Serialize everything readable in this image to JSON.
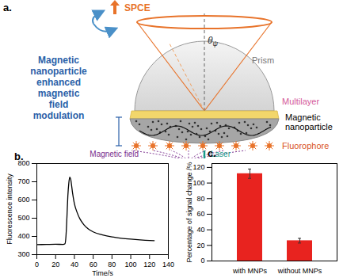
{
  "diagram": {
    "panel_label": "a.",
    "top_label": "SPCE",
    "angle_label": "θ",
    "angle_subscript": "ψ",
    "prism": "Prism",
    "multilayer": "Multilayer",
    "nanoparticle": [
      "Magnetic",
      "nanoparticle"
    ],
    "modulation": [
      "Magnetic",
      "nanoparticle",
      "enhanced",
      "magnetic",
      "field",
      "modulation"
    ],
    "fluorophore": "Fluorophore",
    "field": "Magnetic field",
    "laser": "Laser"
  },
  "chart_data": [
    {
      "type": "line",
      "title": "b.",
      "x_label": "Time/s",
      "y_label": "Fluorescence intensity",
      "color": "#000000",
      "x": [
        0,
        10,
        20,
        28,
        30,
        31,
        32,
        33,
        34,
        35,
        36,
        38,
        40,
        43,
        46,
        50,
        55,
        60,
        70,
        80,
        90,
        100,
        110,
        120,
        125
      ],
      "values": [
        355,
        356,
        357,
        356,
        360,
        400,
        500,
        620,
        690,
        725,
        715,
        640,
        580,
        530,
        495,
        465,
        440,
        425,
        408,
        397,
        390,
        385,
        381,
        378,
        377
      ],
      "xlim": [
        0,
        140
      ],
      "xticks": [
        0,
        20,
        40,
        60,
        80,
        100,
        120,
        140
      ],
      "ylim": [
        300,
        800
      ],
      "yticks": [
        300,
        400,
        500,
        600,
        700,
        800
      ]
    },
    {
      "type": "bar",
      "title": "c.",
      "y_label": "Percentage of signal change /%",
      "color": "#e8231f",
      "categories": [
        "with MNPs",
        "without MNPs"
      ],
      "values": [
        112,
        26
      ],
      "errors": [
        6,
        3
      ],
      "ylim": [
        0,
        125
      ],
      "yticks": [
        0,
        20,
        40,
        60,
        80,
        100,
        120
      ]
    }
  ]
}
